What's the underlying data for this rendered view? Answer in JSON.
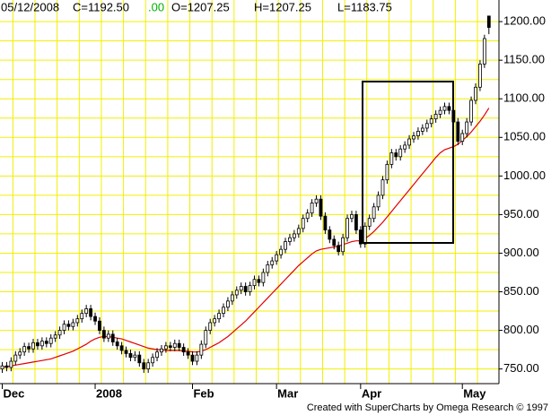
{
  "chart_data": {
    "type": "candlestick",
    "header": {
      "date": "05/12/2008",
      "close": "C=1192.50",
      "change": ".00",
      "open": "O=1207.25",
      "high": "H=1207.25",
      "low": "L=1183.75"
    },
    "credit": "Created with SuperCharts by Omega Research © 1997",
    "categories": [
      "Dec",
      null,
      null,
      null,
      null,
      null,
      null,
      null,
      null,
      null,
      null,
      null,
      null,
      null,
      null,
      null,
      null,
      null,
      null,
      null,
      null,
      "2008",
      null,
      null,
      null,
      null,
      null,
      null,
      null,
      null,
      null,
      null,
      null,
      null,
      null,
      null,
      null,
      null,
      null,
      null,
      null,
      null,
      null,
      "Feb",
      null,
      null,
      null,
      null,
      null,
      null,
      null,
      null,
      null,
      null,
      null,
      null,
      null,
      null,
      null,
      null,
      null,
      null,
      "Mar",
      null,
      null,
      null,
      null,
      null,
      null,
      null,
      null,
      null,
      null,
      null,
      null,
      null,
      null,
      null,
      null,
      null,
      null,
      "Apr",
      null,
      null,
      null,
      null,
      null,
      null,
      null,
      null,
      null,
      null,
      null,
      null,
      null,
      null,
      null,
      null,
      null,
      null,
      null,
      null,
      null,
      null,
      "May",
      null,
      null,
      null,
      null,
      null,
      null
    ],
    "open": [
      750,
      754,
      752,
      760,
      768,
      772,
      779,
      776,
      784,
      780,
      786,
      783,
      790,
      794,
      800,
      808,
      805,
      810,
      815,
      822,
      828,
      818,
      812,
      800,
      790,
      795,
      785,
      780,
      774,
      770,
      765,
      768,
      758,
      750,
      758,
      765,
      772,
      776,
      780,
      778,
      783,
      778,
      772,
      768,
      760,
      768,
      782,
      800,
      810,
      815,
      822,
      830,
      838,
      846,
      852,
      857,
      850,
      858,
      866,
      862,
      875,
      885,
      890,
      898,
      905,
      915,
      920,
      925,
      932,
      945,
      952,
      965,
      970,
      948,
      930,
      918,
      910,
      902,
      920,
      945,
      950,
      930,
      912,
      935,
      945,
      960,
      975,
      995,
      1015,
      1030,
      1025,
      1035,
      1040,
      1048,
      1052,
      1058,
      1062,
      1068,
      1074,
      1080,
      1085,
      1090,
      1085,
      1070,
      1045,
      1055,
      1070,
      1098,
      1115,
      1145,
      1207.25
    ],
    "high": [
      759,
      759,
      765,
      773,
      777,
      784,
      784,
      789,
      789,
      791,
      791,
      795,
      799,
      805,
      813,
      813,
      815,
      820,
      827,
      833,
      833,
      823,
      817,
      805,
      800,
      800,
      790,
      785,
      779,
      775,
      773,
      773,
      763,
      763,
      770,
      777,
      781,
      785,
      785,
      788,
      788,
      783,
      777,
      773,
      773,
      787,
      805,
      815,
      820,
      827,
      835,
      843,
      851,
      857,
      862,
      862,
      863,
      871,
      871,
      880,
      890,
      895,
      903,
      910,
      920,
      925,
      930,
      937,
      950,
      957,
      970,
      975,
      975,
      953,
      935,
      923,
      915,
      925,
      950,
      955,
      955,
      935,
      940,
      950,
      965,
      980,
      1000,
      1020,
      1035,
      1035,
      1040,
      1045,
      1053,
      1057,
      1063,
      1067,
      1073,
      1079,
      1085,
      1090,
      1095,
      1095,
      1090,
      1075,
      1060,
      1075,
      1103,
      1120,
      1150,
      1183,
      1207.25
    ],
    "low": [
      745,
      747,
      747,
      755,
      763,
      767,
      771,
      771,
      775,
      775,
      778,
      778,
      785,
      789,
      795,
      800,
      800,
      805,
      810,
      817,
      813,
      807,
      795,
      785,
      785,
      780,
      775,
      769,
      765,
      760,
      760,
      753,
      745,
      745,
      753,
      760,
      767,
      771,
      773,
      773,
      773,
      767,
      763,
      755,
      755,
      763,
      777,
      795,
      805,
      810,
      817,
      825,
      833,
      841,
      847,
      845,
      845,
      853,
      857,
      857,
      870,
      880,
      885,
      893,
      900,
      910,
      915,
      920,
      927,
      940,
      947,
      960,
      943,
      925,
      913,
      905,
      897,
      897,
      915,
      940,
      925,
      907,
      907,
      930,
      940,
      955,
      970,
      990,
      1010,
      1020,
      1020,
      1030,
      1035,
      1043,
      1047,
      1053,
      1057,
      1063,
      1069,
      1075,
      1080,
      1080,
      1065,
      1040,
      1040,
      1050,
      1065,
      1093,
      1110,
      1140,
      1183.75
    ],
    "close": [
      754,
      752,
      760,
      768,
      772,
      779,
      776,
      784,
      780,
      786,
      783,
      790,
      794,
      800,
      808,
      805,
      810,
      815,
      822,
      828,
      818,
      812,
      800,
      790,
      795,
      785,
      780,
      774,
      770,
      765,
      768,
      758,
      750,
      758,
      765,
      772,
      776,
      780,
      778,
      783,
      778,
      772,
      768,
      760,
      768,
      782,
      800,
      810,
      815,
      822,
      830,
      838,
      846,
      852,
      857,
      850,
      858,
      866,
      862,
      875,
      885,
      890,
      898,
      905,
      915,
      920,
      925,
      932,
      945,
      952,
      965,
      970,
      948,
      930,
      918,
      910,
      902,
      920,
      945,
      950,
      930,
      912,
      935,
      945,
      960,
      975,
      995,
      1015,
      1030,
      1025,
      1035,
      1040,
      1048,
      1052,
      1058,
      1062,
      1068,
      1074,
      1080,
      1085,
      1090,
      1085,
      1070,
      1045,
      1055,
      1070,
      1098,
      1115,
      1145,
      1178,
      1192.5
    ],
    "color": "#000000",
    "overlay": {
      "type": "line",
      "color": "#e00000",
      "values": [
        752,
        753,
        754,
        755,
        756,
        757,
        758,
        759,
        760,
        761,
        762,
        763,
        765,
        767,
        769,
        771,
        773,
        776,
        779,
        782,
        786,
        789,
        791,
        792,
        792,
        791,
        790,
        789,
        787,
        785,
        783,
        781,
        779,
        777,
        776,
        775,
        775,
        774,
        774,
        774,
        774,
        773,
        773,
        772,
        772,
        773,
        775,
        778,
        781,
        784,
        788,
        792,
        797,
        802,
        807,
        812,
        818,
        824,
        830,
        836,
        842,
        848,
        854,
        860,
        866,
        872,
        878,
        884,
        889,
        894,
        899,
        903,
        905,
        906,
        907,
        908,
        909,
        911,
        913,
        915,
        916,
        916,
        919,
        923,
        928,
        934,
        940,
        947,
        954,
        961,
        968,
        975,
        982,
        989,
        996,
        1003,
        1010,
        1017,
        1024,
        1030,
        1034,
        1036,
        1038,
        1041,
        1046,
        1051,
        1057,
        1064,
        1071,
        1079,
        1088
      ]
    },
    "ylim": [
      731,
      1228
    ],
    "yticks": [
      {
        "value": 750,
        "label": "750.00"
      },
      {
        "value": 800,
        "label": "800.00"
      },
      {
        "value": 850,
        "label": "850.00"
      },
      {
        "value": 900,
        "label": "900.00"
      },
      {
        "value": 950,
        "label": "950.00"
      },
      {
        "value": 1000,
        "label": "1000.00"
      },
      {
        "value": 1050,
        "label": "1050.00"
      },
      {
        "value": 1100,
        "label": "1100.00"
      },
      {
        "value": 1150,
        "label": "1150.00"
      },
      {
        "value": 1200,
        "label": "1200.00"
      }
    ],
    "ygrid_minor": [
      775,
      825,
      875,
      925,
      975,
      1025,
      1075,
      1125,
      1175
    ],
    "xgrid_step": 5,
    "grid": true,
    "grid_color": "#f0f000"
  }
}
